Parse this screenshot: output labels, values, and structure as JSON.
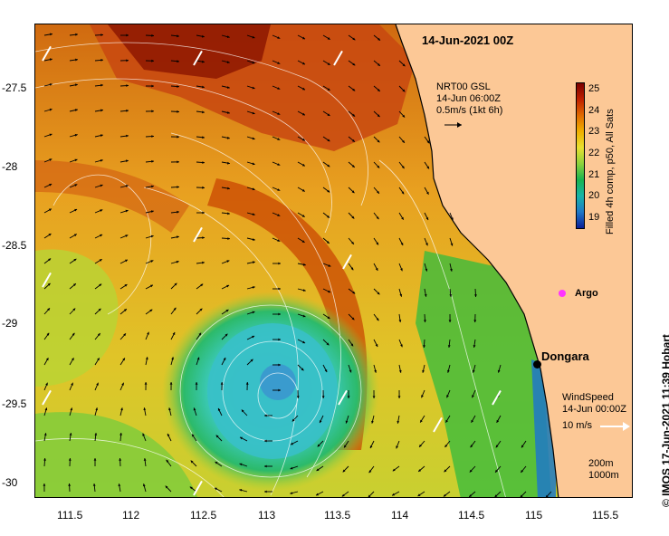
{
  "title": "14-Jun-2021 00Z",
  "current_legend": {
    "line1": "NRT00 GSL",
    "line2": "14-Jun 06:00Z",
    "line3": "0.5m/s (1kt 6h)"
  },
  "wind_legend": {
    "line1": "WindSpeed",
    "line2": "14-Jun 00:00Z",
    "line3": "10 m/s"
  },
  "colorbar": {
    "label": "Filled 4h comp, p50, All Sats",
    "ticks": [
      "25",
      "24",
      "23",
      "22",
      "21",
      "20",
      "19"
    ],
    "colors": [
      "#7a0000",
      "#c02000",
      "#e06a00",
      "#f0b000",
      "#e8e030",
      "#8cd23c",
      "#18b450",
      "#16b4a8",
      "#1e78c8",
      "#0a1e96"
    ]
  },
  "place": {
    "name": "Dongara"
  },
  "argo": {
    "label": "Argo"
  },
  "isobaths": {
    "line1": "200m",
    "line2": "1000m"
  },
  "credit": "© IMOS 17-Jun-2021 11:39 Hobart",
  "x_axis": {
    "ticks": [
      "111.5",
      "112",
      "112.5",
      "113",
      "113.5",
      "114",
      "114.5",
      "115",
      "115.5"
    ]
  },
  "y_axis": {
    "ticks": [
      "-27.5",
      "-28",
      "-28.5",
      "-29",
      "-29.5",
      "-30"
    ]
  },
  "colors": {
    "land": "#fcc896",
    "eddy_core": "#3cc8c8",
    "warm_band": "#c84000"
  }
}
